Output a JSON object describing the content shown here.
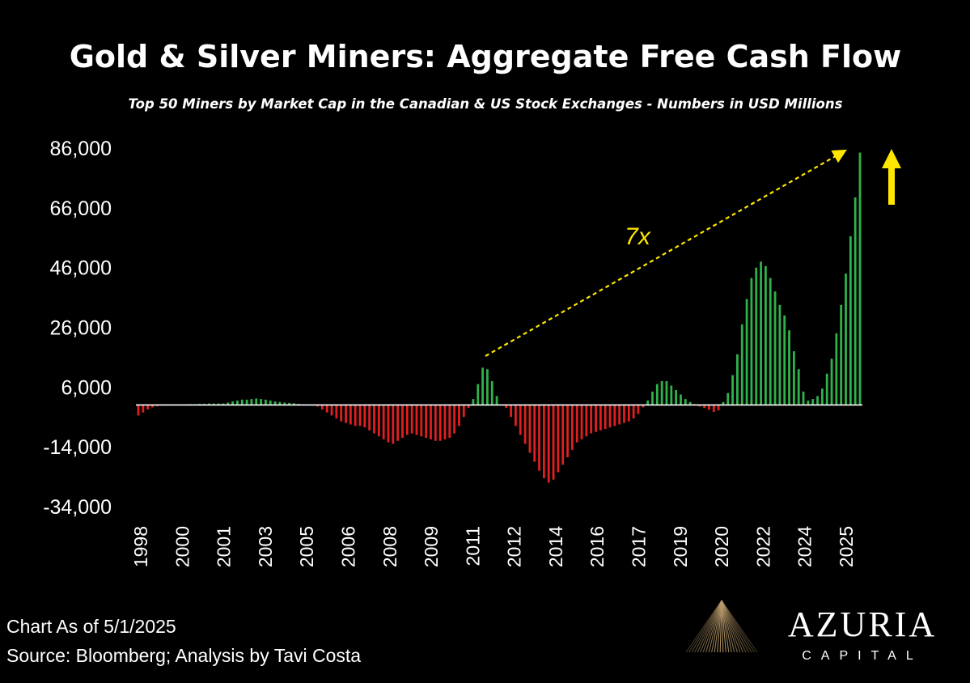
{
  "chart_data": {
    "type": "bar",
    "title": "Gold & Silver Miners: Aggregate Free Cash Flow",
    "subtitle": "Top 50 Miners by Market Cap in the Canadian & US Stock Exchanges - Numbers in USD Millions",
    "ylim": [
      -34000,
      86000
    ],
    "y_ticks": [
      86000,
      66000,
      46000,
      26000,
      6000,
      -14000,
      -34000
    ],
    "y_tick_labels": [
      "86,000",
      "66,000",
      "46,000",
      "26,000",
      "6,000",
      "-14,000",
      "-34,000"
    ],
    "x_tick_labels": [
      "1998",
      "2000",
      "2001",
      "2003",
      "2005",
      "2006",
      "2008",
      "2009",
      "2011",
      "2012",
      "2014",
      "2016",
      "2017",
      "2019",
      "2020",
      "2022",
      "2024",
      "2025"
    ],
    "positive_color": "#2fb24b",
    "negative_color": "#e02020",
    "values": [
      -3500,
      -2500,
      -1500,
      -800,
      -400,
      -200,
      -100,
      -100,
      0,
      100,
      200,
      300,
      300,
      400,
      400,
      500,
      500,
      500,
      500,
      800,
      1200,
      1500,
      1800,
      1800,
      2000,
      2200,
      2000,
      1800,
      1500,
      1200,
      1000,
      800,
      700,
      600,
      400,
      200,
      100,
      -100,
      -500,
      -1500,
      -2500,
      -3500,
      -4500,
      -5500,
      -6000,
      -6500,
      -7000,
      -7000,
      -7500,
      -8500,
      -9500,
      -10500,
      -11500,
      -12500,
      -13000,
      -12000,
      -11000,
      -10000,
      -9500,
      -10000,
      -10500,
      -11000,
      -11500,
      -12000,
      -12000,
      -11500,
      -11000,
      -9500,
      -7000,
      -4000,
      -1000,
      2000,
      7000,
      12500,
      12000,
      8000,
      3000,
      0,
      -1000,
      -4000,
      -7000,
      -10000,
      -13000,
      -16000,
      -19000,
      -22000,
      -24500,
      -26000,
      -25000,
      -22500,
      -20000,
      -17500,
      -15000,
      -12500,
      -11500,
      -10500,
      -9500,
      -9000,
      -8500,
      -8000,
      -7500,
      -7000,
      -6500,
      -6000,
      -5500,
      -4500,
      -3000,
      -800,
      1500,
      4500,
      7000,
      8000,
      8000,
      6500,
      5000,
      3500,
      2000,
      1000,
      300,
      -500,
      -1000,
      -1600,
      -2300,
      -1800,
      1000,
      4000,
      10000,
      17000,
      27000,
      35500,
      42500,
      46000,
      48000,
      46500,
      42500,
      38000,
      33500,
      30000,
      25000,
      18000,
      12000,
      4500,
      1500,
      2000,
      3000,
      5500,
      10500,
      15500,
      24000,
      33500,
      44000,
      56500,
      69500,
      84500
    ],
    "annotation": "7x"
  },
  "footer": {
    "as_of": "Chart As of 5/1/2025",
    "source": "Source: Bloomberg; Analysis by Tavi Costa"
  },
  "logo": {
    "name": "AZURIA",
    "tagline": "CAPITAL"
  },
  "colors": {
    "background": "#000000",
    "annotation": "#ffe600",
    "text": "#ffffff"
  }
}
